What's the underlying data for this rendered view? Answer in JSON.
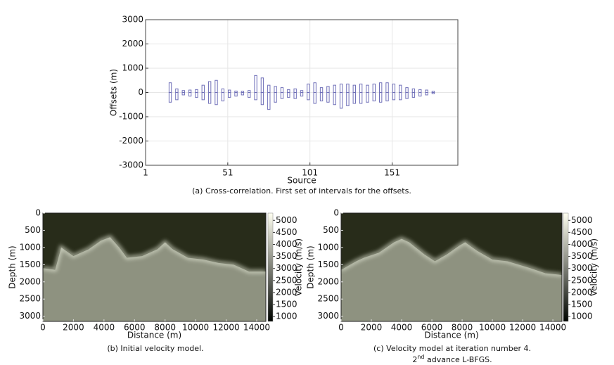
{
  "chart_data": [
    {
      "type": "interval",
      "caption": "(a) Cross-correlation. First set of intervals for the offsets.",
      "xlabel": "Source",
      "ylabel": "Offsets (m)",
      "color": "#6f6fb8",
      "x": [
        16,
        20,
        24,
        28,
        32,
        36,
        40,
        44,
        48,
        52,
        56,
        60,
        64,
        68,
        72,
        76,
        80,
        84,
        88,
        92,
        96,
        100,
        104,
        108,
        112,
        116,
        120,
        124,
        128,
        132,
        136,
        140,
        144,
        148,
        152,
        156,
        160,
        164,
        168,
        172,
        176
      ],
      "upper": [
        400,
        150,
        80,
        100,
        120,
        300,
        450,
        500,
        150,
        100,
        60,
        50,
        80,
        700,
        600,
        300,
        250,
        200,
        120,
        150,
        80,
        350,
        400,
        200,
        250,
        300,
        350,
        350,
        300,
        350,
        300,
        350,
        400,
        400,
        350,
        300,
        200,
        150,
        120,
        100,
        50
      ],
      "lower": [
        -400,
        -300,
        -100,
        -150,
        -200,
        -300,
        -450,
        -500,
        -350,
        -200,
        -150,
        -100,
        -200,
        -300,
        -500,
        -700,
        -400,
        -250,
        -200,
        -250,
        -150,
        -300,
        -450,
        -350,
        -400,
        -500,
        -650,
        -550,
        -450,
        -450,
        -400,
        -350,
        -400,
        -350,
        -300,
        -300,
        -250,
        -200,
        -150,
        -100,
        -50
      ],
      "xlim": [
        1,
        191
      ],
      "xticks": [
        1,
        51,
        101,
        151
      ],
      "ylim": [
        -3000,
        3000
      ],
      "yticks": [
        -3000,
        -2000,
        -1000,
        0,
        1000,
        2000,
        3000
      ],
      "grid": true
    },
    {
      "type": "velocity",
      "caption": "(b) Initial velocity model.",
      "xlabel": "Distance (m)",
      "ylabel": "Depth (m)",
      "colorbar_label": "Velocity (m/s)",
      "distance": [
        0,
        800,
        1200,
        2000,
        3000,
        3800,
        4400,
        5000,
        5500,
        6500,
        7500,
        8000,
        8500,
        9500,
        10500,
        11500,
        12500,
        13500,
        14600
      ],
      "surface_depth": [
        1600,
        1650,
        1000,
        1250,
        1050,
        800,
        700,
        1000,
        1300,
        1250,
        1050,
        850,
        1050,
        1300,
        1350,
        1450,
        1500,
        1700,
        1700
      ],
      "upper_velocity": 1500,
      "lower_velocity": 3300,
      "interface_velocity": 4800,
      "xlim": [
        0,
        14600
      ],
      "xticks": [
        0,
        2000,
        4000,
        6000,
        8000,
        10000,
        12000,
        14000
      ],
      "ylim": [
        0,
        3150
      ],
      "yticks": [
        0,
        500,
        1000,
        1500,
        2000,
        2500,
        3000
      ],
      "clim": [
        800,
        5300
      ],
      "cticks": [
        1000,
        1500,
        2000,
        2500,
        3000,
        3500,
        4000,
        4500,
        5000
      ]
    },
    {
      "type": "velocity",
      "caption": "(c) Velocity model at iteration number 4.",
      "caption_line2": {
        "ordinal": "2",
        "suffix": "nd",
        "rest": " advance L-BFGS."
      },
      "xlabel": "Distance (m)",
      "ylabel": "Depth (m)",
      "colorbar_label": "Velocity (m/s)",
      "distance": [
        0,
        1000,
        1500,
        2500,
        3500,
        4000,
        4500,
        5500,
        6200,
        7000,
        7800,
        8200,
        9000,
        10000,
        11000,
        12500,
        13500,
        14600
      ],
      "surface_depth": [
        1650,
        1400,
        1300,
        1150,
        850,
        750,
        850,
        1200,
        1400,
        1200,
        950,
        850,
        1100,
        1350,
        1400,
        1600,
        1750,
        1800
      ],
      "upper_velocity": 1500,
      "lower_velocity": 3300,
      "interface_velocity": 4800,
      "xlim": [
        0,
        14600
      ],
      "xticks": [
        0,
        2000,
        4000,
        6000,
        8000,
        10000,
        12000,
        14000
      ],
      "ylim": [
        0,
        3150
      ],
      "yticks": [
        0,
        500,
        1000,
        1500,
        2000,
        2500,
        3000
      ],
      "clim": [
        800,
        5300
      ],
      "cticks": [
        1000,
        1500,
        2000,
        2500,
        3000,
        3500,
        4000,
        4500,
        5000
      ]
    }
  ]
}
